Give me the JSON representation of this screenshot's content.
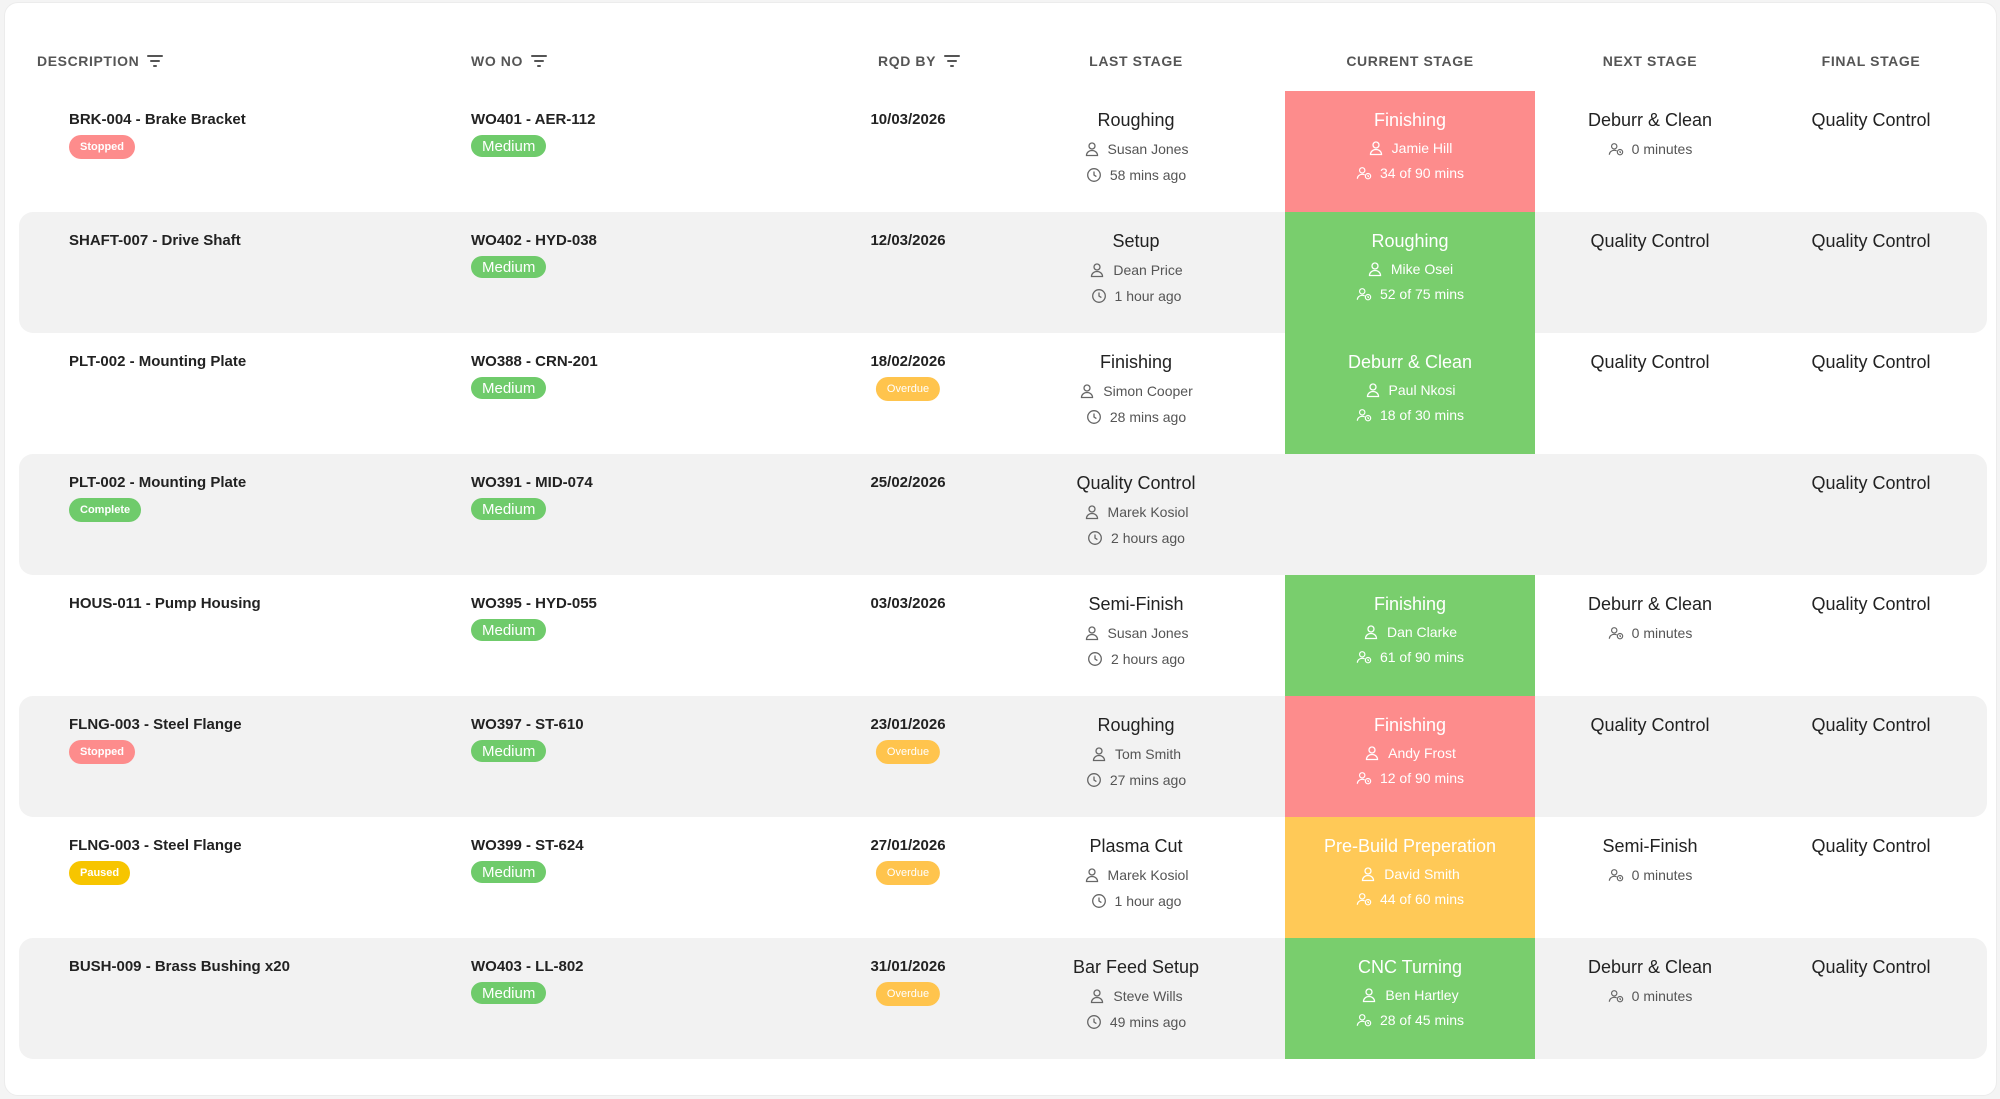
{
  "headers": {
    "description": "DESCRIPTION",
    "wo_no": "WO NO",
    "rqd_by": "RQD BY",
    "last_stage": "LAST STAGE",
    "current_stage": "CURRENT STAGE",
    "next_stage": "NEXT STAGE",
    "final_stage": "FINAL STAGE"
  },
  "colors": {
    "green": "#79ce6d",
    "red": "#fd8c8c",
    "yellow": "#ffc957",
    "priority_green": "#6fcb6b",
    "stopped": "#fd8c8c",
    "complete": "#6fcb6b",
    "paused": "#f7c500",
    "overdue": "#ffc44d"
  },
  "rows": [
    {
      "description": "BRK-004 - Brake Bracket",
      "status": "Stopped",
      "wo": "WO401 - AER-112",
      "priority": "Medium",
      "rqd_by": "10/03/2026",
      "overdue": "",
      "last": {
        "stage": "Roughing",
        "operator": "Susan Jones",
        "time": "58 mins ago"
      },
      "current": {
        "stage": "Finishing",
        "operator": "Jamie Hill",
        "progress": "34 of 90 mins",
        "color": "red"
      },
      "next": {
        "stage": "Deburr & Clean",
        "time": "0 minutes"
      },
      "final": "Quality Control"
    },
    {
      "description": "SHAFT-007 - Drive Shaft",
      "status": "",
      "wo": "WO402 - HYD-038",
      "priority": "Medium",
      "rqd_by": "12/03/2026",
      "overdue": "",
      "last": {
        "stage": "Setup",
        "operator": "Dean Price",
        "time": "1 hour ago"
      },
      "current": {
        "stage": "Roughing",
        "operator": "Mike Osei",
        "progress": "52 of 75 mins",
        "color": "green"
      },
      "next": {
        "stage": "Quality Control",
        "time": ""
      },
      "final": "Quality Control"
    },
    {
      "description": "PLT-002 - Mounting Plate",
      "status": "",
      "wo": "WO388 - CRN-201",
      "priority": "Medium",
      "rqd_by": "18/02/2026",
      "overdue": "Overdue",
      "last": {
        "stage": "Finishing",
        "operator": "Simon Cooper",
        "time": "28 mins ago"
      },
      "current": {
        "stage": "Deburr & Clean",
        "operator": "Paul Nkosi",
        "progress": "18 of 30 mins",
        "color": "green"
      },
      "next": {
        "stage": "Quality Control",
        "time": ""
      },
      "final": "Quality Control"
    },
    {
      "description": "PLT-002 - Mounting Plate",
      "status": "Complete",
      "wo": "WO391 - MID-074",
      "priority": "Medium",
      "rqd_by": "25/02/2026",
      "overdue": "",
      "last": {
        "stage": "Quality Control",
        "operator": "Marek Kosiol",
        "time": "2 hours ago"
      },
      "current": null,
      "next": null,
      "final": "Quality Control"
    },
    {
      "description": "HOUS-011 - Pump Housing",
      "status": "",
      "wo": "WO395 - HYD-055",
      "priority": "Medium",
      "rqd_by": "03/03/2026",
      "overdue": "",
      "last": {
        "stage": "Semi-Finish",
        "operator": "Susan Jones",
        "time": "2 hours ago"
      },
      "current": {
        "stage": "Finishing",
        "operator": "Dan Clarke",
        "progress": "61 of 90 mins",
        "color": "green"
      },
      "next": {
        "stage": "Deburr & Clean",
        "time": "0 minutes"
      },
      "final": "Quality Control"
    },
    {
      "description": "FLNG-003 - Steel Flange",
      "status": "Stopped",
      "wo": "WO397 - ST-610",
      "priority": "Medium",
      "rqd_by": "23/01/2026",
      "overdue": "Overdue",
      "last": {
        "stage": "Roughing",
        "operator": "Tom Smith",
        "time": "27 mins ago"
      },
      "current": {
        "stage": "Finishing",
        "operator": "Andy Frost",
        "progress": "12 of 90 mins",
        "color": "red"
      },
      "next": {
        "stage": "Quality Control",
        "time": ""
      },
      "final": "Quality Control"
    },
    {
      "description": "FLNG-003 - Steel Flange",
      "status": "Paused",
      "wo": "WO399 - ST-624",
      "priority": "Medium",
      "rqd_by": "27/01/2026",
      "overdue": "Overdue",
      "last": {
        "stage": "Plasma Cut",
        "operator": "Marek Kosiol",
        "time": "1 hour ago"
      },
      "current": {
        "stage": "Pre-Build Preperation",
        "operator": "David Smith",
        "progress": "44 of 60 mins",
        "color": "yellow"
      },
      "next": {
        "stage": "Semi-Finish",
        "time": "0 minutes"
      },
      "final": "Quality Control"
    },
    {
      "description": "BUSH-009 - Brass Bushing x20",
      "status": "",
      "wo": "WO403 - LL-802",
      "priority": "Medium",
      "rqd_by": "31/01/2026",
      "overdue": "Overdue",
      "last": {
        "stage": "Bar Feed Setup",
        "operator": "Steve Wills",
        "time": "49 mins ago"
      },
      "current": {
        "stage": "CNC Turning",
        "operator": "Ben Hartley",
        "progress": "28 of 45 mins",
        "color": "green"
      },
      "next": {
        "stage": "Deburr & Clean",
        "time": "0 minutes"
      },
      "final": "Quality Control"
    }
  ]
}
